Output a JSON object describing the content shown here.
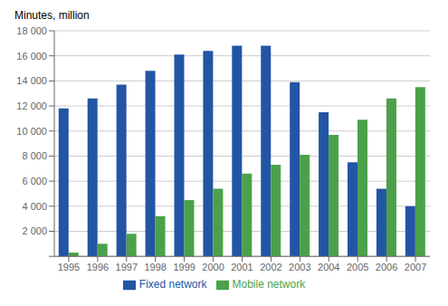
{
  "chart_data": {
    "type": "bar",
    "y_label": "Minutes, million",
    "categories": [
      "1995",
      "1996",
      "1997",
      "1998",
      "1999",
      "2000",
      "2001",
      "2002",
      "2003",
      "2004",
      "2005",
      "2006",
      "2007"
    ],
    "series": [
      {
        "name": "Fixed network",
        "color": "#2255A4",
        "values": [
          11800,
          12600,
          13700,
          14800,
          16100,
          16400,
          16800,
          16800,
          13900,
          11500,
          7500,
          5400,
          4000
        ]
      },
      {
        "name": "Mobile network",
        "color": "#4BA14A",
        "values": [
          300,
          1000,
          1800,
          3200,
          4500,
          5400,
          6600,
          7300,
          8100,
          9700,
          10900,
          12600,
          13500
        ]
      }
    ],
    "ylim": [
      0,
      18000
    ],
    "yticks": [
      {
        "value": 0,
        "label": ""
      },
      {
        "value": 2000,
        "label": "2 000"
      },
      {
        "value": 4000,
        "label": "4 000"
      },
      {
        "value": 6000,
        "label": "6 000"
      },
      {
        "value": 8000,
        "label": "8 000"
      },
      {
        "value": 10000,
        "label": "10 000"
      },
      {
        "value": 12000,
        "label": "12 000"
      },
      {
        "value": 14000,
        "label": "14 000"
      },
      {
        "value": 16000,
        "label": "16 000"
      },
      {
        "value": 18000,
        "label": "18 000"
      }
    ],
    "grid": true,
    "legend": "bottom"
  }
}
